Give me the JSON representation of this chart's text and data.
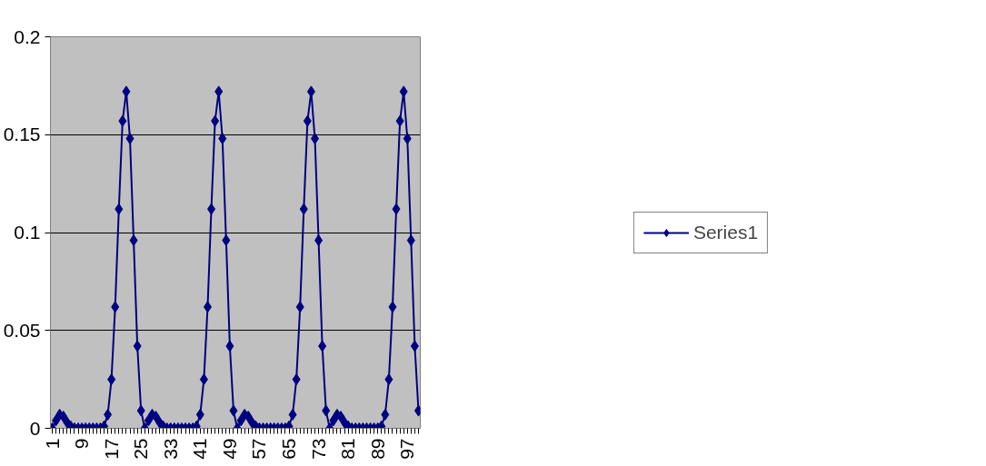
{
  "chart_data": {
    "type": "line",
    "categories": [
      "1",
      null,
      null,
      null,
      null,
      null,
      null,
      null,
      "9",
      null,
      null,
      null,
      null,
      null,
      null,
      null,
      "17",
      null,
      null,
      null,
      null,
      null,
      null,
      null,
      "25",
      null,
      null,
      null,
      null,
      null,
      null,
      null,
      "33",
      null,
      null,
      null,
      null,
      null,
      null,
      null,
      "41",
      null,
      null,
      null,
      null,
      null,
      null,
      null,
      "49",
      null,
      null,
      null,
      null,
      null,
      null,
      null,
      "57",
      null,
      null,
      null,
      null,
      null,
      null,
      null,
      "65",
      null,
      null,
      null,
      null,
      null,
      null,
      null,
      "73",
      null,
      null,
      null,
      null,
      null,
      null,
      null,
      "81",
      null,
      null,
      null,
      null,
      null,
      null,
      null,
      "89",
      null,
      null,
      null,
      null,
      null,
      null,
      null,
      "97",
      null,
      null,
      null
    ],
    "series": [
      {
        "name": "Series1",
        "color": "#000080",
        "values": [
          0,
          0.004,
          0.007,
          0.006,
          0.003,
          0.001,
          0,
          0,
          0,
          0,
          0,
          0,
          0,
          0,
          0.001,
          0.007,
          0.025,
          0.062,
          0.112,
          0.157,
          0.172,
          0.148,
          0.096,
          0.042,
          0.009,
          0,
          0.004,
          0.007,
          0.006,
          0.003,
          0.001,
          0,
          0,
          0,
          0,
          0,
          0,
          0,
          0,
          0.001,
          0.007,
          0.025,
          0.062,
          0.112,
          0.157,
          0.172,
          0.148,
          0.096,
          0.042,
          0.009,
          0,
          0.004,
          0.007,
          0.006,
          0.003,
          0.001,
          0,
          0,
          0,
          0,
          0,
          0,
          0,
          0,
          0.001,
          0.007,
          0.025,
          0.062,
          0.112,
          0.157,
          0.172,
          0.148,
          0.096,
          0.042,
          0.009,
          0,
          0.004,
          0.007,
          0.006,
          0.003,
          0.001,
          0,
          0,
          0,
          0,
          0,
          0,
          0,
          0,
          0.001,
          0.007,
          0.025,
          0.062,
          0.112,
          0.157,
          0.172,
          0.148,
          0.096,
          0.042,
          0.009
        ]
      }
    ],
    "ylim": [
      0,
      0.2
    ],
    "yticks": [
      0,
      0.05,
      0.1,
      0.15,
      0.2
    ],
    "grid": "y",
    "legend": "right",
    "marker": "diamond",
    "line_style": "solid"
  }
}
